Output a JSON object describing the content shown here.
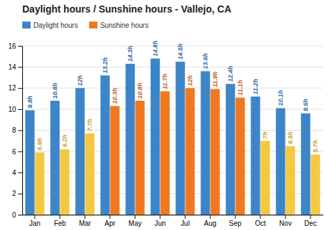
{
  "chart_data": {
    "type": "bar",
    "title": "Daylight hours / Sunshine hours - Vallejo, CA",
    "categories": [
      "Jan",
      "Feb",
      "Mar",
      "Apr",
      "May",
      "Jun",
      "Jul",
      "Aug",
      "Sep",
      "Oct",
      "Nov",
      "Dec"
    ],
    "series": [
      {
        "name": "Daylight hours",
        "color": "#3d85c8",
        "values": [
          9.9,
          10.8,
          12.0,
          13.2,
          14.3,
          14.8,
          14.5,
          13.6,
          12.4,
          11.2,
          10.1,
          9.6
        ],
        "value_labels": [
          "9.9h",
          "10.8h",
          "12h",
          "13.2h",
          "14.3h",
          "14.8h",
          "14.5h",
          "13.6h",
          "12.4h",
          "11.2h",
          "10.1h",
          "9.6h"
        ]
      },
      {
        "name": "Sunshine hours",
        "color": "#f07820",
        "colors": [
          "#f5c842",
          "#f5c842",
          "#f5c842",
          "#f07820",
          "#f07820",
          "#f07820",
          "#f07820",
          "#f07820",
          "#f07820",
          "#f5c842",
          "#f5c842",
          "#f5c842"
        ],
        "values": [
          5.9,
          6.2,
          7.7,
          10.3,
          10.8,
          11.7,
          12.0,
          11.9,
          11.1,
          7.0,
          6.5,
          5.7
        ],
        "value_labels": [
          "5.9h",
          "6.2h",
          "7.7h",
          "10.3h",
          "10.8h",
          "11.7h",
          "12h",
          "11.9h",
          "11.1h",
          "7h",
          "6.5h",
          "5.7h"
        ]
      }
    ],
    "ylim": [
      0,
      16
    ],
    "yticks": [
      0,
      2,
      4,
      6,
      8,
      10,
      12,
      14,
      16
    ],
    "grid": true,
    "legend": "upper left",
    "data_labels": true
  }
}
